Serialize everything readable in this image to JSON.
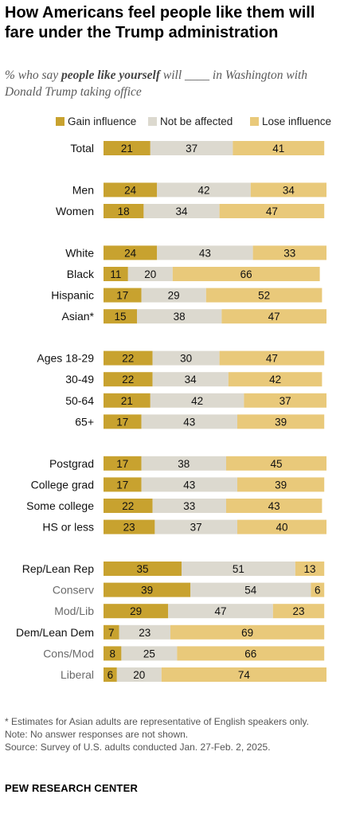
{
  "title": "How Americans feel people like them will fare under the Trump administration",
  "subtitle": {
    "prefix": "% who say ",
    "emphasis": "people like yourself",
    "suffix": " will ____ in Washington with Donald Trump taking office"
  },
  "colors": {
    "gain": "#c8a22f",
    "neutral": "#dcd9cf",
    "lose": "#e9c97a"
  },
  "chart_data": {
    "type": "bar",
    "orientation": "horizontal",
    "stacked": true,
    "legend_position": "top",
    "series": [
      {
        "name": "Gain influence"
      },
      {
        "name": "Not be affected"
      },
      {
        "name": "Lose influence"
      }
    ],
    "rows": [
      {
        "label": "Total",
        "group": 0,
        "sub": false,
        "values": [
          21,
          37,
          41
        ]
      },
      {
        "label": "Men",
        "group": 1,
        "sub": false,
        "values": [
          24,
          42,
          34
        ]
      },
      {
        "label": "Women",
        "group": 1,
        "sub": false,
        "values": [
          18,
          34,
          47
        ]
      },
      {
        "label": "White",
        "group": 2,
        "sub": false,
        "values": [
          24,
          43,
          33
        ]
      },
      {
        "label": "Black",
        "group": 2,
        "sub": false,
        "values": [
          11,
          20,
          66
        ]
      },
      {
        "label": "Hispanic",
        "group": 2,
        "sub": false,
        "values": [
          17,
          29,
          52
        ]
      },
      {
        "label": "Asian*",
        "group": 2,
        "sub": false,
        "values": [
          15,
          38,
          47
        ]
      },
      {
        "label": "Ages 18-29",
        "group": 3,
        "sub": false,
        "values": [
          22,
          30,
          47
        ]
      },
      {
        "label": "30-49",
        "group": 3,
        "sub": false,
        "values": [
          22,
          34,
          42
        ]
      },
      {
        "label": "50-64",
        "group": 3,
        "sub": false,
        "values": [
          21,
          42,
          37
        ]
      },
      {
        "label": "65+",
        "group": 3,
        "sub": false,
        "values": [
          17,
          43,
          39
        ]
      },
      {
        "label": "Postgrad",
        "group": 4,
        "sub": false,
        "values": [
          17,
          38,
          45
        ]
      },
      {
        "label": "College grad",
        "group": 4,
        "sub": false,
        "values": [
          17,
          43,
          39
        ]
      },
      {
        "label": "Some college",
        "group": 4,
        "sub": false,
        "values": [
          22,
          33,
          43
        ]
      },
      {
        "label": "HS or less",
        "group": 4,
        "sub": false,
        "values": [
          23,
          37,
          40
        ]
      },
      {
        "label": "Rep/Lean Rep",
        "group": 5,
        "sub": false,
        "values": [
          35,
          51,
          13
        ]
      },
      {
        "label": "Conserv",
        "group": 5,
        "sub": true,
        "values": [
          39,
          54,
          6
        ]
      },
      {
        "label": "Mod/Lib",
        "group": 5,
        "sub": true,
        "values": [
          29,
          47,
          23
        ]
      },
      {
        "label": "Dem/Lean Dem",
        "group": 5,
        "sub": false,
        "values": [
          7,
          23,
          69
        ]
      },
      {
        "label": "Cons/Mod",
        "group": 5,
        "sub": true,
        "values": [
          8,
          25,
          66
        ]
      },
      {
        "label": "Liberal",
        "group": 5,
        "sub": true,
        "values": [
          6,
          20,
          74
        ]
      }
    ],
    "xlim": [
      0,
      100
    ]
  },
  "footnotes": {
    "asterisk": "* Estimates for Asian adults are representative of English speakers only.",
    "note": "Note: No answer responses are not shown.",
    "source": "Source: Survey of U.S. adults conducted Jan. 27-Feb. 2, 2025."
  },
  "brand": "PEW RESEARCH CENTER"
}
